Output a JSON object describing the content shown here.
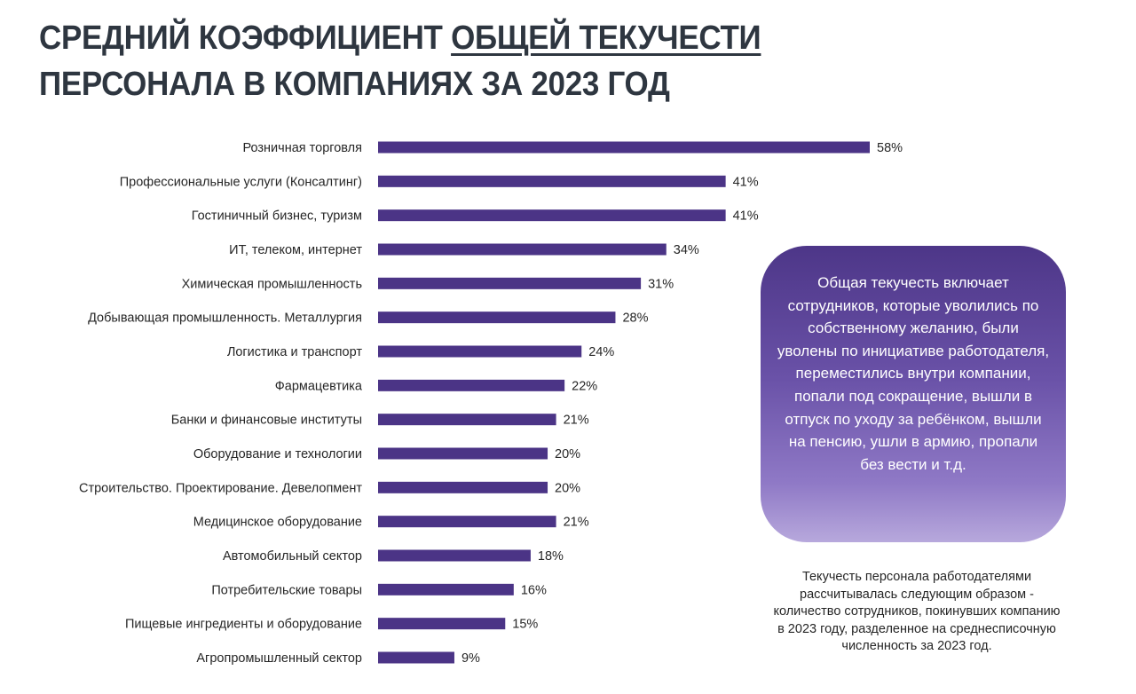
{
  "title": {
    "line1_a": "СРЕДНИЙ КОЭФФИЦИЕНТ ",
    "line1_b": "ОБЩЕЙ ТЕКУЧЕСТИ",
    "line2": "ПЕРСОНАЛА В КОМПАНИЯХ ЗА 2023 ГОД"
  },
  "callout": "Общая текучесть включает сотрудников, которые уволились по собственному желанию, были уволены по инициативе работодателя, переместились внутри компании, попали под сокращение, вышли в отпуск по уходу за ребёнком, вышли на пенсию, ушли в армию, пропали без вести и т.д.",
  "note": "Текучесть персонала работодателями рассчитывалась следующим образом - количество сотрудников, покинувших компанию в 2023 году, разделенное на среднесписочную численность за 2023 год.",
  "colors": {
    "bar": "#4b3486"
  },
  "chart_data": {
    "type": "bar",
    "orientation": "horizontal",
    "title": "СРЕДНИЙ КОЭФФИЦИЕНТ ОБЩЕЙ ТЕКУЧЕСТИ ПЕРСОНАЛА В КОМПАНИЯХ ЗА 2023 ГОД",
    "unit": "%",
    "xlim": [
      0,
      58
    ],
    "grid": false,
    "categories": [
      "Розничная торговля",
      "Профессиональные услуги (Консалтинг)",
      "Гостиничный бизнес, туризм",
      "ИТ, телеком, интернет",
      "Химическая промышленность",
      "Добывающая промышленность. Металлургия",
      "Логистика и транспорт",
      "Фармацевтика",
      "Банки и финансовые институты",
      "Оборудование и технологии",
      "Строительство. Проектирование. Девелопмент",
      "Медицинское оборудование",
      "Автомобильный сектор",
      "Потребительские товары",
      "Пищевые ингредиенты и оборудование",
      "Агропромышленный сектор"
    ],
    "values": [
      58,
      41,
      41,
      34,
      31,
      28,
      24,
      22,
      21,
      20,
      20,
      21,
      18,
      16,
      15,
      9
    ],
    "labels": [
      "58%",
      "41%",
      "41%",
      "34%",
      "31%",
      "28%",
      "24%",
      "22%",
      "21%",
      "20%",
      "20%",
      "21%",
      "18%",
      "16%",
      "15%",
      "9%"
    ]
  }
}
